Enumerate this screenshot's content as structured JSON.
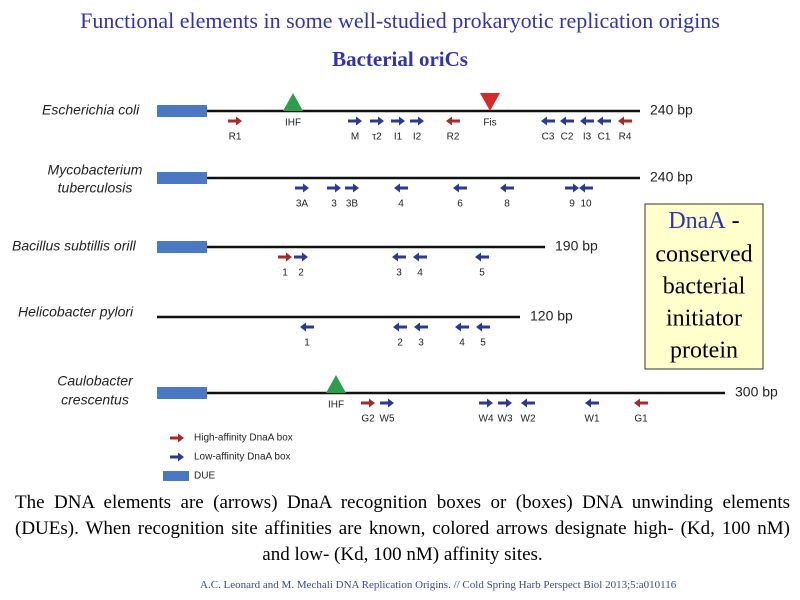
{
  "title": "Functional elements in some well-studied prokaryotic replication origins",
  "subtitle": "Bacterial oriCs",
  "origins": [
    {
      "name": [
        "Escherichia coli"
      ],
      "length": "240 bp",
      "markers": [
        "IHF",
        "Fis"
      ],
      "elements": [
        "R1",
        "M",
        "τ2",
        "I1",
        "I2",
        "R2",
        "C3",
        "C2",
        "I3",
        "C1",
        "R4"
      ]
    },
    {
      "name": [
        "Mycobacterium",
        "tuberculosis"
      ],
      "length": "240 bp",
      "markers": [],
      "elements": [
        "3A",
        "3",
        "3B",
        "4",
        "6",
        "8",
        "9",
        "10"
      ]
    },
    {
      "name": [
        "Bacillus subtillis orill"
      ],
      "length": "190 bp",
      "markers": [],
      "elements": [
        "1",
        "2",
        "3",
        "4",
        "5"
      ]
    },
    {
      "name": [
        "Helicobacter pylori"
      ],
      "length": "120 bp",
      "markers": [],
      "elements": [
        "1",
        "2",
        "3",
        "4",
        "5"
      ]
    },
    {
      "name": [
        "Caulobacter",
        "crescentus"
      ],
      "length": "300 bp",
      "markers": [
        "IHF"
      ],
      "elements": [
        "G2",
        "W5",
        "W4",
        "W3",
        "W2",
        "W1",
        "G1"
      ]
    }
  ],
  "legend": [
    {
      "label": "High-affinity DnaA box",
      "color": "#a52a2a"
    },
    {
      "label": "Low-affinity DnaA box",
      "color": "#2b3990"
    },
    {
      "label": "DUE",
      "color": "#4a78c2"
    }
  ],
  "callout": {
    "term": "DnaA",
    "lines": [
      "-",
      "conserved",
      "bacterial",
      "initiator",
      "protein"
    ]
  },
  "caption": "The DNA elements are (arrows) DnaA recognition boxes or (boxes) DNA unwinding elements (DUEs). When recognition site affinities are known, colored arrows designate high- (Kd, 100 nM) and low- (Kd, 100 nM) affinity sites.",
  "citation": "A.C. Leonard and M. Mechali DNA Replication Origins. // Cold Spring Harb Perspect Biol 2013;5:a010116"
}
